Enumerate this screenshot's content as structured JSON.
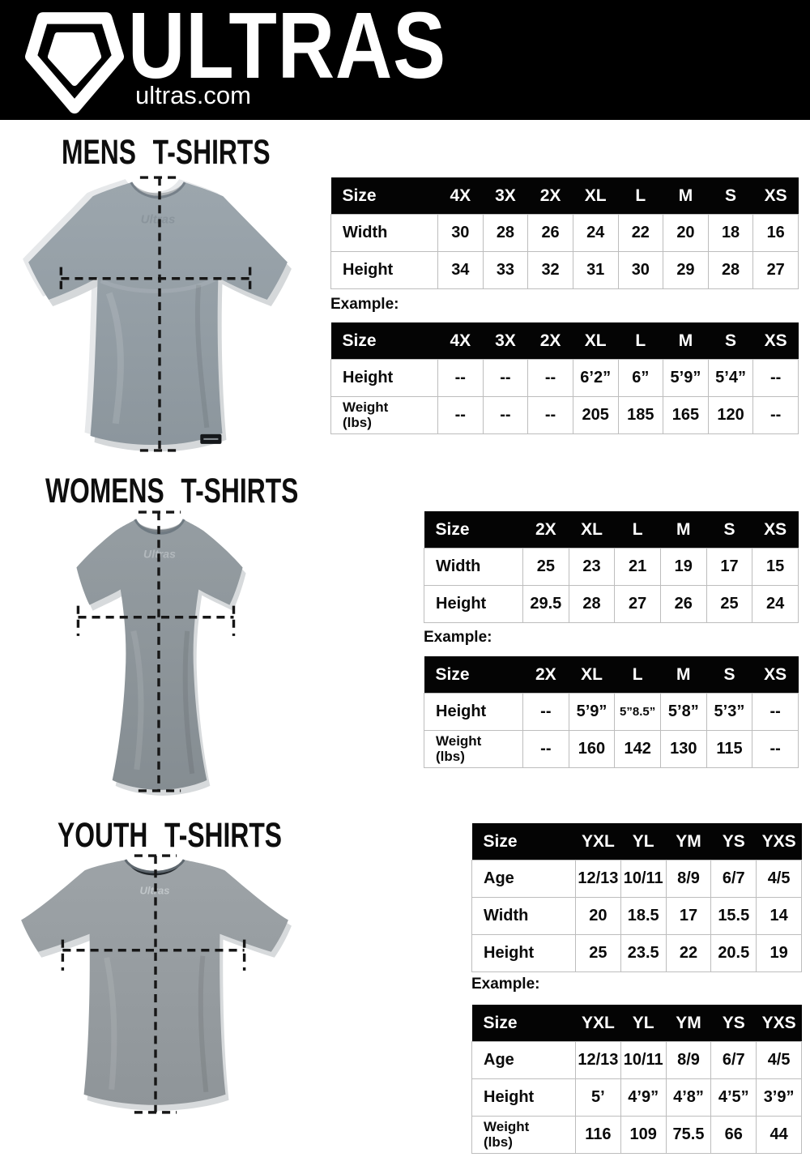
{
  "header": {
    "brand": "ULTRAS",
    "website": "ultras.com",
    "logo_icon": "pentagon-crest-icon",
    "bar_color": "#000000"
  },
  "colors": {
    "table_header_bg": "#040404",
    "table_header_text": "#ffffff",
    "table_border": "#bdbdbd",
    "mens_shirt_gray": "#97a1a8",
    "womens_shirt_gray": "#8f979c",
    "youth_shirt_gray": "#9aa1a5",
    "measure_line": "#161616"
  },
  "sections": {
    "mens": {
      "title": "MENS T-SHIRTS",
      "image": "mens-tshirt-photo-with-measure-lines",
      "example_label": "Example:",
      "size_table": {
        "header": [
          "Size",
          "4X",
          "3X",
          "2X",
          "XL",
          "L",
          "M",
          "S",
          "XS"
        ],
        "rows": [
          {
            "label": "Width",
            "values": [
              "30",
              "28",
              "26",
              "24",
              "22",
              "20",
              "18",
              "16"
            ]
          },
          {
            "label": "Height",
            "values": [
              "34",
              "33",
              "32",
              "31",
              "30",
              "29",
              "28",
              "27"
            ]
          }
        ]
      },
      "example_table": {
        "header": [
          "Size",
          "4X",
          "3X",
          "2X",
          "XL",
          "L",
          "M",
          "S",
          "XS"
        ],
        "rows": [
          {
            "label": "Height",
            "values": [
              "--",
              "--",
              "--",
              "6’2”",
              "6”",
              "5’9”",
              "5’4”",
              "--"
            ]
          },
          {
            "label": "Weight\n(lbs)",
            "values": [
              "--",
              "--",
              "--",
              "205",
              "185",
              "165",
              "120",
              "--"
            ]
          }
        ]
      }
    },
    "womens": {
      "title": "WOMENS T-SHIRTS",
      "image": "womens-tshirt-photo-with-measure-lines",
      "example_label": "Example:",
      "size_table": {
        "header": [
          "Size",
          "2X",
          "XL",
          "L",
          "M",
          "S",
          "XS"
        ],
        "rows": [
          {
            "label": "Width",
            "values": [
              "25",
              "23",
              "21",
              "19",
              "17",
              "15"
            ]
          },
          {
            "label": "Height",
            "values": [
              "29.5",
              "28",
              "27",
              "26",
              "25",
              "24"
            ]
          }
        ]
      },
      "example_table": {
        "header": [
          "Size",
          "2X",
          "XL",
          "L",
          "M",
          "S",
          "XS"
        ],
        "rows": [
          {
            "label": "Height",
            "values": [
              "--",
              "5’9”",
              "5”8.5”",
              "5’8”",
              "5’3”",
              "--"
            ]
          },
          {
            "label": "Weight\n(lbs)",
            "values": [
              "--",
              "160",
              "142",
              "130",
              "115",
              "--"
            ]
          }
        ]
      }
    },
    "youth": {
      "title": "YOUTH T-SHIRTS",
      "image": "youth-tshirt-photo-with-measure-lines",
      "example_label": "Example:",
      "size_table": {
        "header": [
          "Size",
          "YXL",
          "YL",
          "YM",
          "YS",
          "YXS"
        ],
        "rows": [
          {
            "label": "Age",
            "values": [
              "12/13",
              "10/11",
              "8/9",
              "6/7",
              "4/5"
            ]
          },
          {
            "label": "Width",
            "values": [
              "20",
              "18.5",
              "17",
              "15.5",
              "14"
            ]
          },
          {
            "label": "Height",
            "values": [
              "25",
              "23.5",
              "22",
              "20.5",
              "19"
            ]
          }
        ]
      },
      "example_table": {
        "header": [
          "Size",
          "YXL",
          "YL",
          "YM",
          "YS",
          "YXS"
        ],
        "rows": [
          {
            "label": "Age",
            "values": [
              "12/13",
              "10/11",
              "8/9",
              "6/7",
              "4/5"
            ]
          },
          {
            "label": "Height",
            "values": [
              "5’",
              "4’9”",
              "4’8”",
              "4’5”",
              "3’9”"
            ]
          },
          {
            "label": "Weight\n(lbs)",
            "values": [
              "116",
              "109",
              "75.5",
              "66",
              "44"
            ]
          }
        ]
      }
    }
  }
}
